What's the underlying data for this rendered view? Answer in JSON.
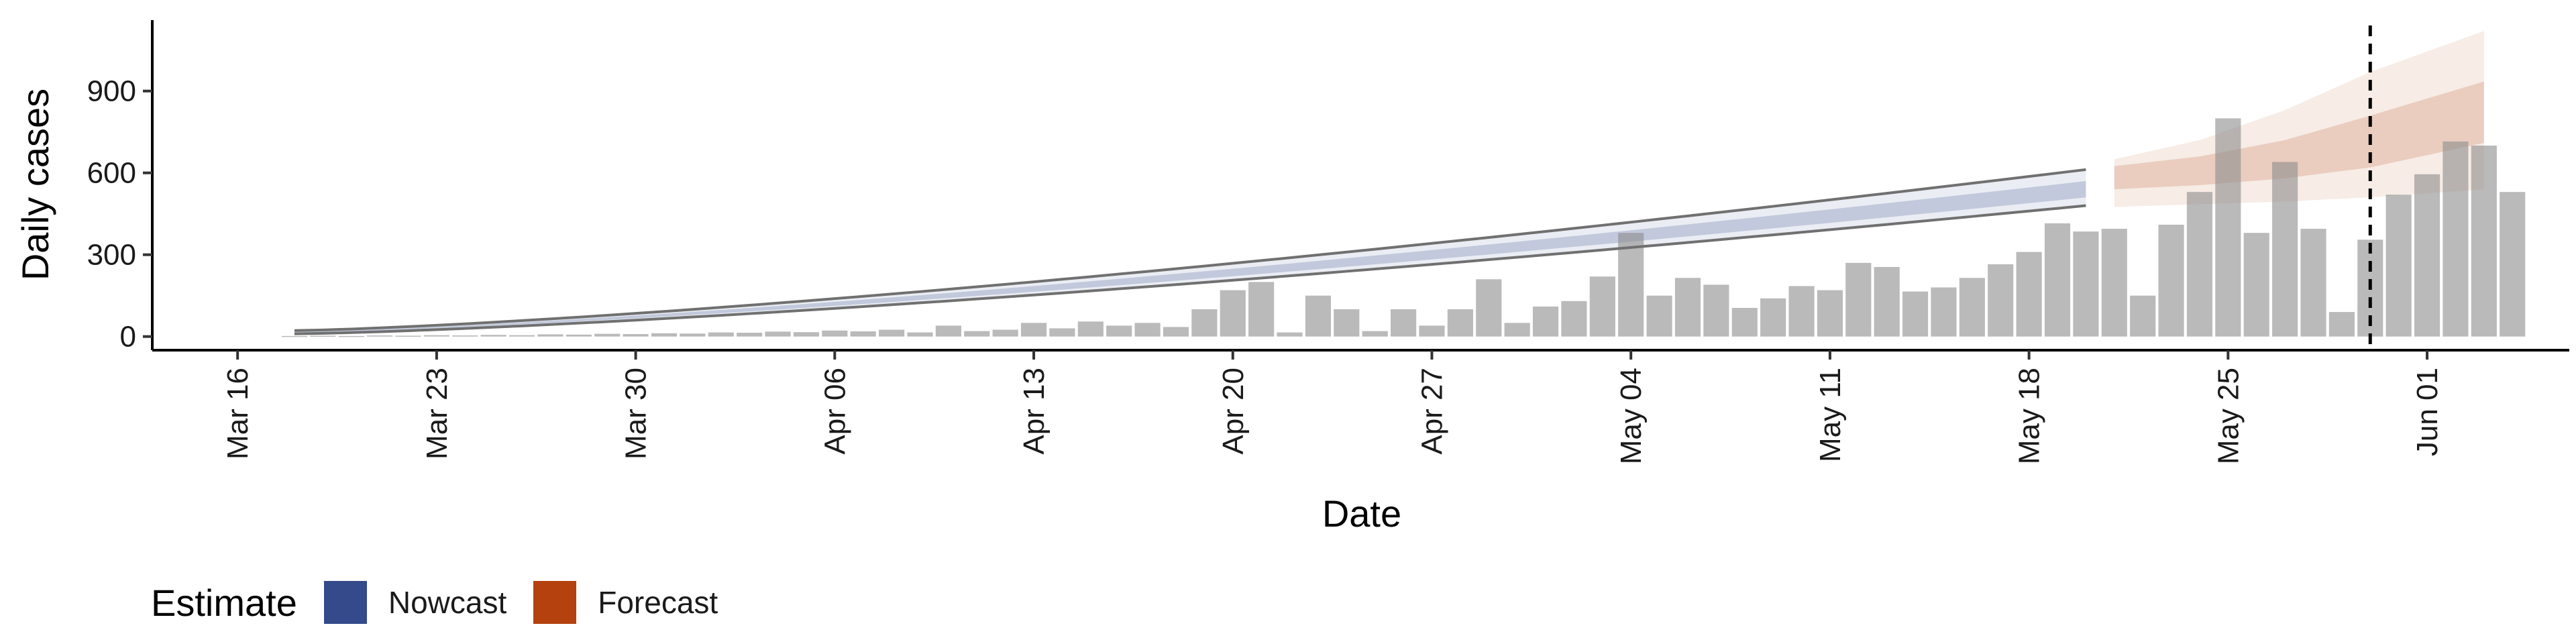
{
  "chart_data": {
    "type": "bar",
    "xlabel": "Date",
    "ylabel": "Daily cases",
    "x_axis_type": "date",
    "xlim": [
      "2020-03-13",
      "2020-06-06"
    ],
    "ylim": [
      -50,
      1160
    ],
    "x_ticks": [
      {
        "date": "2020-03-16",
        "label": "Mar 16"
      },
      {
        "date": "2020-03-23",
        "label": "Mar 23"
      },
      {
        "date": "2020-03-30",
        "label": "Mar 30"
      },
      {
        "date": "2020-04-06",
        "label": "Apr 06"
      },
      {
        "date": "2020-04-13",
        "label": "Apr 13"
      },
      {
        "date": "2020-04-20",
        "label": "Apr 20"
      },
      {
        "date": "2020-04-27",
        "label": "Apr 27"
      },
      {
        "date": "2020-05-04",
        "label": "May 04"
      },
      {
        "date": "2020-05-11",
        "label": "May 11"
      },
      {
        "date": "2020-05-18",
        "label": "May 18"
      },
      {
        "date": "2020-05-25",
        "label": "May 25"
      },
      {
        "date": "2020-06-01",
        "label": "Jun 01"
      }
    ],
    "y_ticks": [
      0,
      300,
      600,
      900
    ],
    "grid": false,
    "reference_line": {
      "date": "2020-05-30",
      "style": "dashed"
    },
    "reported_cases": {
      "start_date": "2020-03-18",
      "values": [
        2,
        3,
        2,
        4,
        3,
        5,
        4,
        6,
        5,
        8,
        7,
        10,
        9,
        12,
        11,
        15,
        14,
        18,
        16,
        22,
        19,
        25,
        15,
        40,
        20,
        25,
        50,
        30,
        55,
        40,
        50,
        35,
        100,
        170,
        200,
        15,
        150,
        100,
        20,
        100,
        40,
        100,
        210,
        50,
        110,
        130,
        220,
        380,
        150,
        215,
        190,
        105,
        140,
        185,
        170,
        270,
        255,
        165,
        180,
        215,
        265,
        310,
        415,
        385,
        395,
        150,
        410,
        530,
        800,
        380,
        640,
        395,
        90,
        355,
        520,
        595,
        715,
        700,
        530
      ]
    },
    "series": [
      {
        "name": "Nowcast",
        "color": "#354A8B",
        "start_date": "2020-03-18",
        "end_date": "2020-05-20",
        "inner_lower_start": 14,
        "inner_upper_start": 18,
        "inner_lower_end": 510,
        "inner_upper_end": 570,
        "outer_lower_start": 10,
        "outer_upper_start": 22,
        "outer_lower_end": 480,
        "outer_upper_end": 612
      },
      {
        "name": "Forecast",
        "color": "#B4410E",
        "start_date": "2020-05-21",
        "end_date": "2020-06-03",
        "inner": [
          {
            "date": "2020-05-21",
            "lower": 540,
            "upper": 625
          },
          {
            "date": "2020-05-24",
            "lower": 555,
            "upper": 660
          },
          {
            "date": "2020-05-27",
            "lower": 580,
            "upper": 720
          },
          {
            "date": "2020-05-30",
            "lower": 620,
            "upper": 810
          },
          {
            "date": "2020-06-03",
            "lower": 710,
            "upper": 935
          }
        ],
        "outer": [
          {
            "date": "2020-05-21",
            "lower": 475,
            "upper": 650
          },
          {
            "date": "2020-05-24",
            "lower": 485,
            "upper": 720
          },
          {
            "date": "2020-05-27",
            "lower": 495,
            "upper": 830
          },
          {
            "date": "2020-05-30",
            "lower": 510,
            "upper": 970
          },
          {
            "date": "2020-06-03",
            "lower": 540,
            "upper": 1120
          }
        ]
      }
    ],
    "legend": {
      "title": "Estimate",
      "position": "bottom-left",
      "items": [
        {
          "label": "Nowcast",
          "color": "#354A8B"
        },
        {
          "label": "Forecast",
          "color": "#B4410E"
        }
      ]
    }
  }
}
